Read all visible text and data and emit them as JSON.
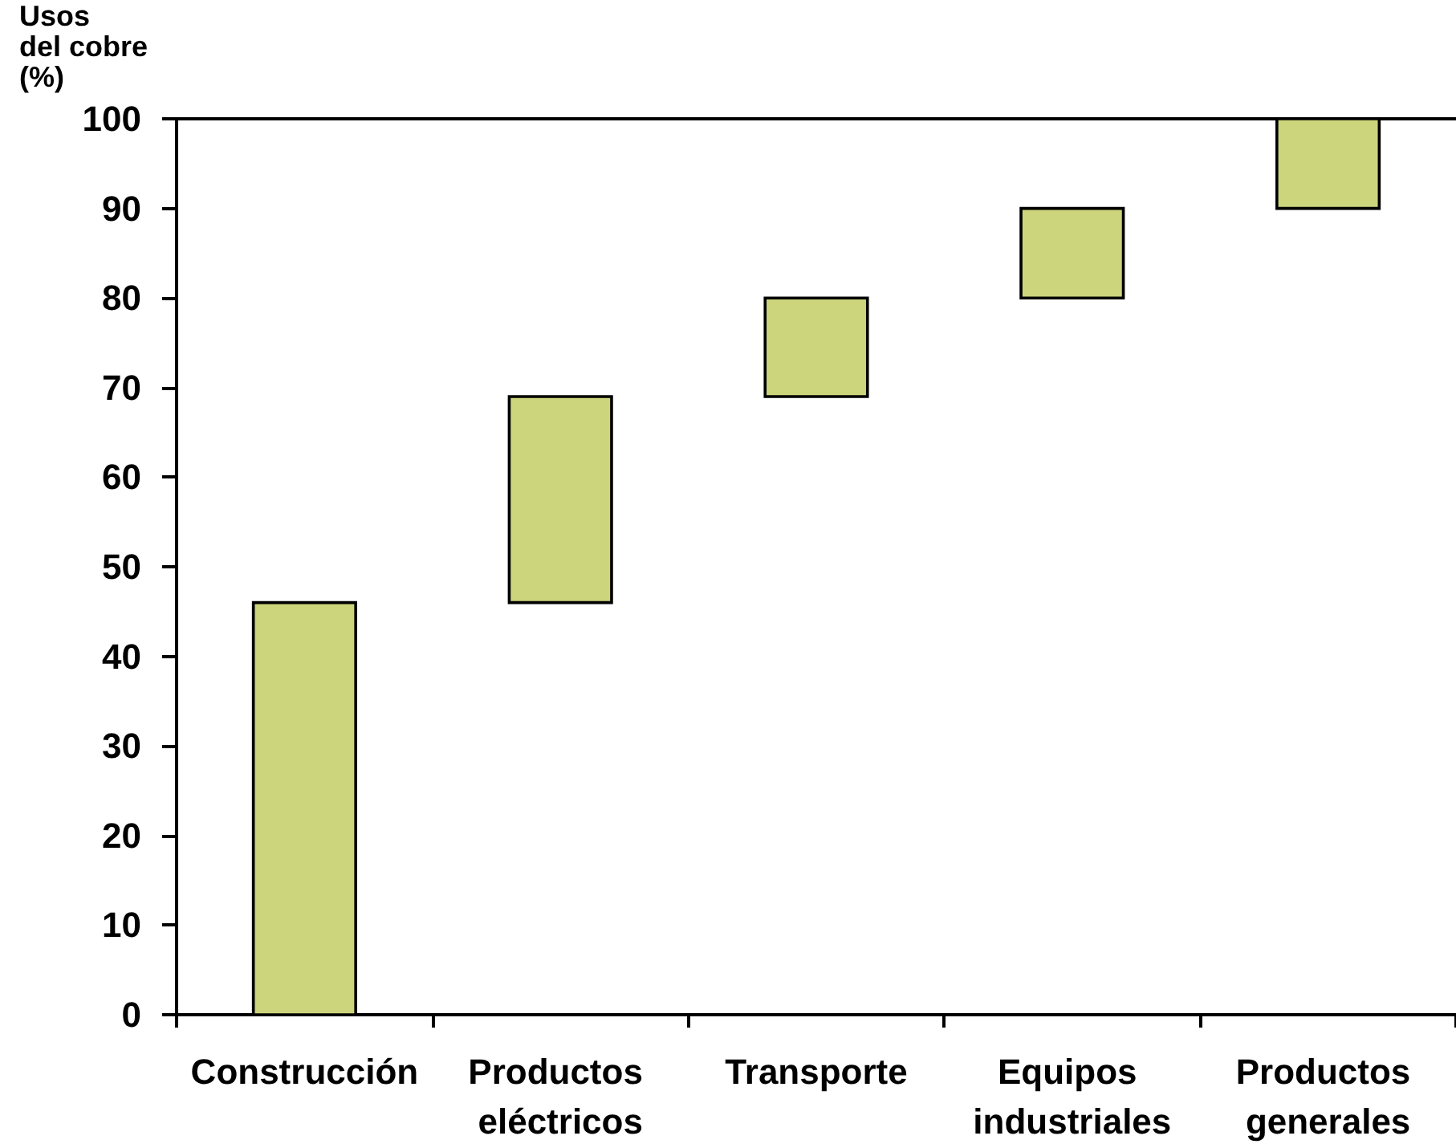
{
  "chart_data": {
    "type": "bar",
    "ylabel": "Usos\ndel cobre\n(%)",
    "categories": [
      "Construcción",
      "Productos eléctricos",
      "Transporte",
      "Equipos industriales",
      "Productos generales"
    ],
    "values": [
      46,
      23,
      11,
      10,
      10
    ],
    "base": [
      0,
      46,
      69,
      80,
      90
    ],
    "color": "#ccd57b",
    "ylim": [
      0,
      100
    ],
    "yticks": [
      0,
      10,
      20,
      30,
      40,
      50,
      60,
      70,
      80,
      90,
      100
    ]
  }
}
